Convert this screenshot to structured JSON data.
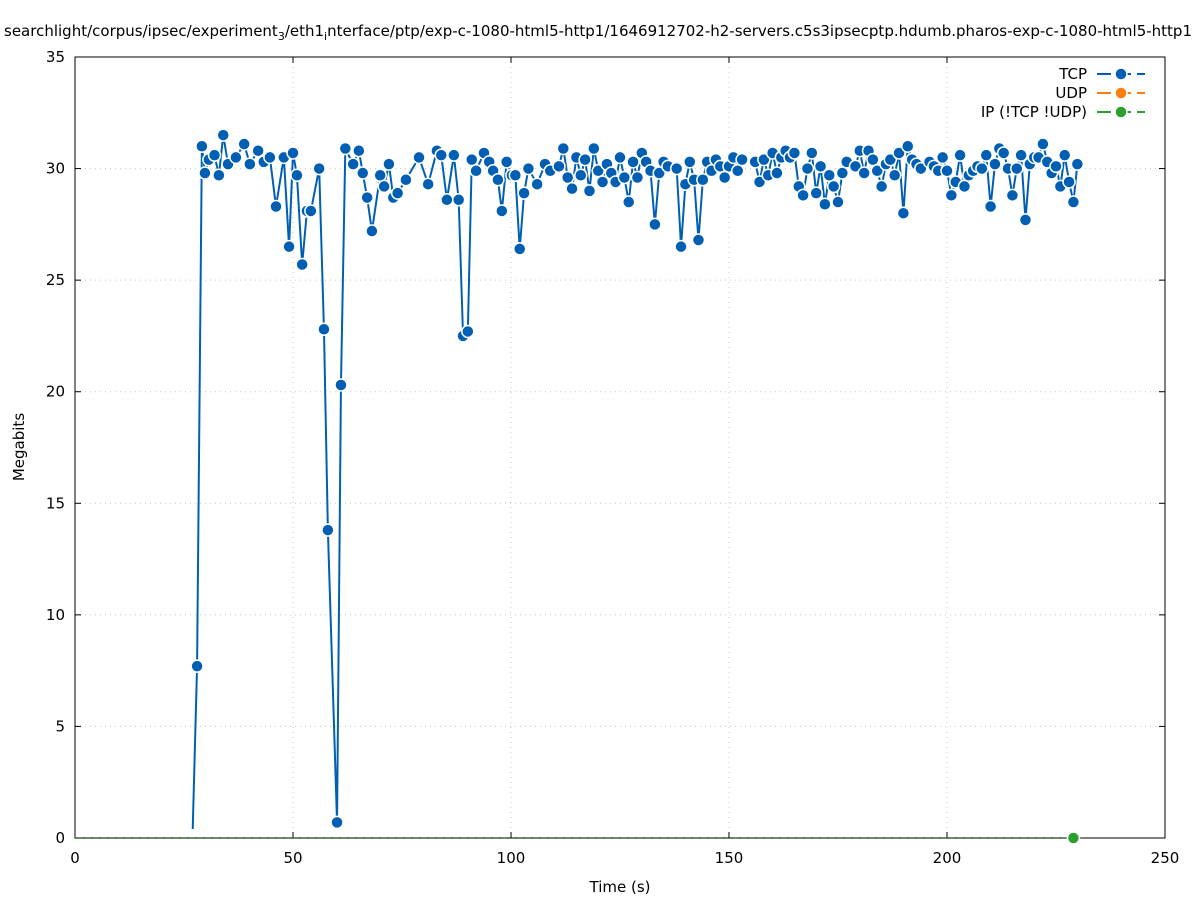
{
  "chart_data": {
    "type": "line",
    "title_parts": [
      "searchlight/corpus/ipsec/experiment",
      "3",
      "/eth1",
      "i",
      "nterface/ptp/exp-c-1080-html5-http1/1646912702-h2-servers.c5s3ipsecptp.hdumb.pharos-exp-c-1080-html5-http1"
    ],
    "xlabel": "Time (s)",
    "ylabel": "Megabits",
    "xlim": [
      0,
      250
    ],
    "ylim": [
      0,
      35
    ],
    "xticks": [
      0,
      50,
      100,
      150,
      200,
      250
    ],
    "yticks": [
      0,
      5,
      10,
      15,
      20,
      25,
      30,
      35
    ],
    "grid": true,
    "legend_position": "top-right",
    "series": [
      {
        "name": "TCP",
        "color": "#005fb3",
        "points": [
          [
            27,
            0.4
          ],
          [
            28,
            7.7
          ],
          [
            29.1,
            31.0
          ],
          [
            29.8,
            29.8
          ],
          [
            30.7,
            30.4
          ],
          [
            32,
            30.6
          ],
          [
            33,
            29.7
          ],
          [
            34,
            31.5
          ],
          [
            35.1,
            30.2
          ],
          [
            36.9,
            30.5
          ],
          [
            38.8,
            31.1
          ],
          [
            40.1,
            30.2
          ],
          [
            42,
            30.8
          ],
          [
            43.3,
            30.3
          ],
          [
            44.7,
            30.5
          ],
          [
            46.1,
            28.3
          ],
          [
            47.9,
            30.5
          ],
          [
            49.1,
            26.5
          ],
          [
            50,
            30.7
          ],
          [
            50.9,
            29.7
          ],
          [
            52.1,
            25.7
          ],
          [
            53.2,
            28.1
          ],
          [
            54.1,
            28.1
          ],
          [
            56,
            30.0
          ],
          [
            57.1,
            22.8
          ],
          [
            58,
            13.8
          ],
          [
            60.1,
            0.7
          ],
          [
            61,
            20.3
          ],
          [
            62,
            30.9
          ],
          [
            63.8,
            30.2
          ],
          [
            65.1,
            30.8
          ],
          [
            66,
            29.8
          ],
          [
            67,
            28.7
          ],
          [
            68.1,
            27.2
          ],
          [
            70,
            29.7
          ],
          [
            70.9,
            29.2
          ],
          [
            72,
            30.2
          ],
          [
            73,
            28.7
          ],
          [
            74,
            28.9
          ],
          [
            75.9,
            29.5
          ],
          [
            78.9,
            30.5
          ],
          [
            81,
            29.3
          ],
          [
            83,
            30.8
          ],
          [
            84,
            30.6
          ],
          [
            85.3,
            28.6
          ],
          [
            86.9,
            30.6
          ],
          [
            88,
            28.6
          ],
          [
            89,
            22.5
          ],
          [
            90.1,
            22.7
          ],
          [
            91,
            30.4
          ],
          [
            92,
            29.9
          ],
          [
            93.8,
            30.7
          ],
          [
            95,
            30.3
          ],
          [
            95.9,
            29.9
          ],
          [
            97,
            29.5
          ],
          [
            97.9,
            28.1
          ],
          [
            99,
            30.3
          ],
          [
            100.2,
            29.7
          ],
          [
            101,
            29.7
          ],
          [
            102,
            26.4
          ],
          [
            103,
            28.9
          ],
          [
            104,
            30.0
          ],
          [
            106,
            29.3
          ],
          [
            107.8,
            30.2
          ],
          [
            109,
            29.9
          ],
          [
            111,
            30.1
          ],
          [
            112,
            30.9
          ],
          [
            113,
            29.6
          ],
          [
            114,
            29.1
          ],
          [
            115,
            30.5
          ],
          [
            116,
            29.7
          ],
          [
            117,
            30.4
          ],
          [
            118,
            29.0
          ],
          [
            119,
            30.9
          ],
          [
            120,
            29.9
          ],
          [
            121,
            29.4
          ],
          [
            122,
            30.2
          ],
          [
            123,
            29.8
          ],
          [
            124,
            29.4
          ],
          [
            125,
            30.5
          ],
          [
            126,
            29.6
          ],
          [
            127,
            28.5
          ],
          [
            128,
            30.3
          ],
          [
            129,
            29.6
          ],
          [
            130,
            30.7
          ],
          [
            131,
            30.3
          ],
          [
            132,
            29.9
          ],
          [
            133,
            27.5
          ],
          [
            134,
            29.8
          ],
          [
            135,
            30.3
          ],
          [
            136,
            30.1
          ],
          [
            138,
            30.0
          ],
          [
            139,
            26.5
          ],
          [
            140,
            29.3
          ],
          [
            141,
            30.3
          ],
          [
            142,
            29.5
          ],
          [
            143,
            26.8
          ],
          [
            144,
            29.5
          ],
          [
            145,
            30.3
          ],
          [
            146,
            29.9
          ],
          [
            147,
            30.4
          ],
          [
            148,
            30.1
          ],
          [
            149,
            29.6
          ],
          [
            150,
            30.1
          ],
          [
            151,
            30.5
          ],
          [
            152,
            29.9
          ],
          [
            153,
            30.4
          ],
          [
            156,
            30.3
          ],
          [
            157,
            29.4
          ],
          [
            158,
            30.4
          ],
          [
            159,
            29.7
          ],
          [
            160,
            30.7
          ],
          [
            161,
            29.8
          ],
          [
            162,
            30.5
          ],
          [
            163,
            30.8
          ],
          [
            164,
            30.5
          ],
          [
            165,
            30.7
          ],
          [
            166,
            29.2
          ],
          [
            167,
            28.8
          ],
          [
            168,
            30.0
          ],
          [
            169,
            30.7
          ],
          [
            170,
            28.9
          ],
          [
            171,
            30.1
          ],
          [
            172,
            28.4
          ],
          [
            173,
            29.7
          ],
          [
            174,
            29.2
          ],
          [
            175,
            28.5
          ],
          [
            176,
            29.8
          ],
          [
            177,
            30.3
          ],
          [
            179,
            30.1
          ],
          [
            180,
            30.8
          ],
          [
            181,
            29.8
          ],
          [
            182,
            30.8
          ],
          [
            183,
            30.4
          ],
          [
            184,
            29.9
          ],
          [
            185,
            29.2
          ],
          [
            186,
            30.2
          ],
          [
            187,
            30.4
          ],
          [
            188,
            29.7
          ],
          [
            189,
            30.7
          ],
          [
            190,
            28.0
          ],
          [
            191,
            31.0
          ],
          [
            192,
            30.4
          ],
          [
            193,
            30.2
          ],
          [
            194,
            30.0
          ],
          [
            196,
            30.3
          ],
          [
            197,
            30.1
          ],
          [
            198,
            29.9
          ],
          [
            199,
            30.5
          ],
          [
            200,
            29.9
          ],
          [
            201,
            28.8
          ],
          [
            202,
            29.4
          ],
          [
            203,
            30.6
          ],
          [
            204,
            29.2
          ],
          [
            205,
            29.7
          ],
          [
            206,
            29.9
          ],
          [
            207,
            30.1
          ],
          [
            208,
            30.0
          ],
          [
            209,
            30.6
          ],
          [
            210,
            28.3
          ],
          [
            211,
            30.2
          ],
          [
            212,
            30.9
          ],
          [
            213,
            30.7
          ],
          [
            214,
            30.0
          ],
          [
            215,
            28.8
          ],
          [
            216,
            30.0
          ],
          [
            217,
            30.6
          ],
          [
            218,
            27.7
          ],
          [
            219,
            30.2
          ],
          [
            220,
            30.5
          ],
          [
            221,
            30.5
          ],
          [
            222,
            31.1
          ],
          [
            223,
            30.3
          ],
          [
            224,
            29.8
          ],
          [
            225,
            30.1
          ],
          [
            226,
            29.2
          ],
          [
            227,
            30.6
          ],
          [
            228,
            29.4
          ],
          [
            229,
            28.5
          ],
          [
            229.9,
            30.2
          ]
        ]
      },
      {
        "name": "UDP",
        "color": "#ff7f0e",
        "points": []
      },
      {
        "name": "IP (!TCP  !UDP)",
        "color": "#2ca02c",
        "points": [
          [
            0,
            0
          ],
          [
            229,
            0
          ]
        ]
      }
    ]
  }
}
